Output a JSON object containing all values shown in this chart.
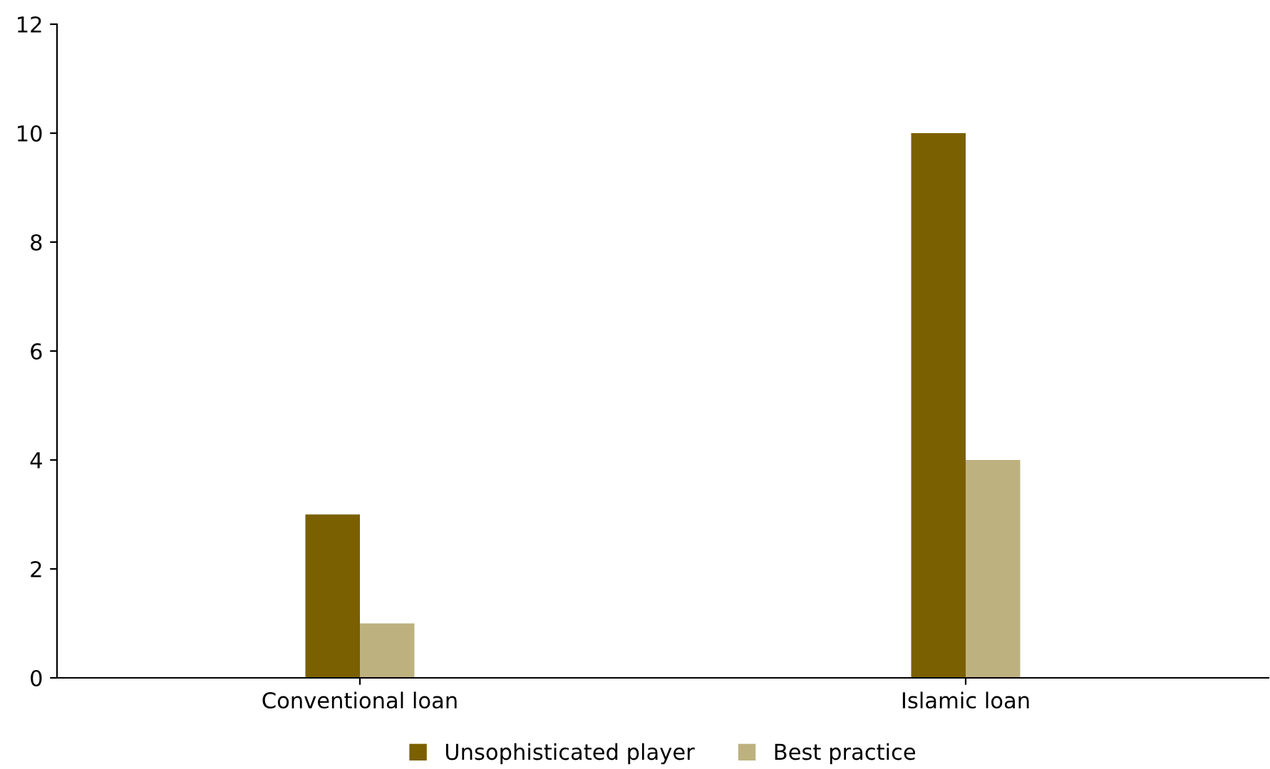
{
  "chart_data": {
    "type": "bar",
    "categories": [
      "Conventional loan",
      "Islamic loan"
    ],
    "series": [
      {
        "name": "Unsophisticated player",
        "color": "#7a6000",
        "values": [
          3,
          10
        ]
      },
      {
        "name": "Best practice",
        "color": "#bdb27f",
        "values": [
          1,
          4
        ]
      }
    ],
    "ylim": [
      0,
      12
    ],
    "yticks": [
      0,
      2,
      4,
      6,
      8,
      10,
      12
    ],
    "grid": false,
    "legend": "bottom"
  }
}
